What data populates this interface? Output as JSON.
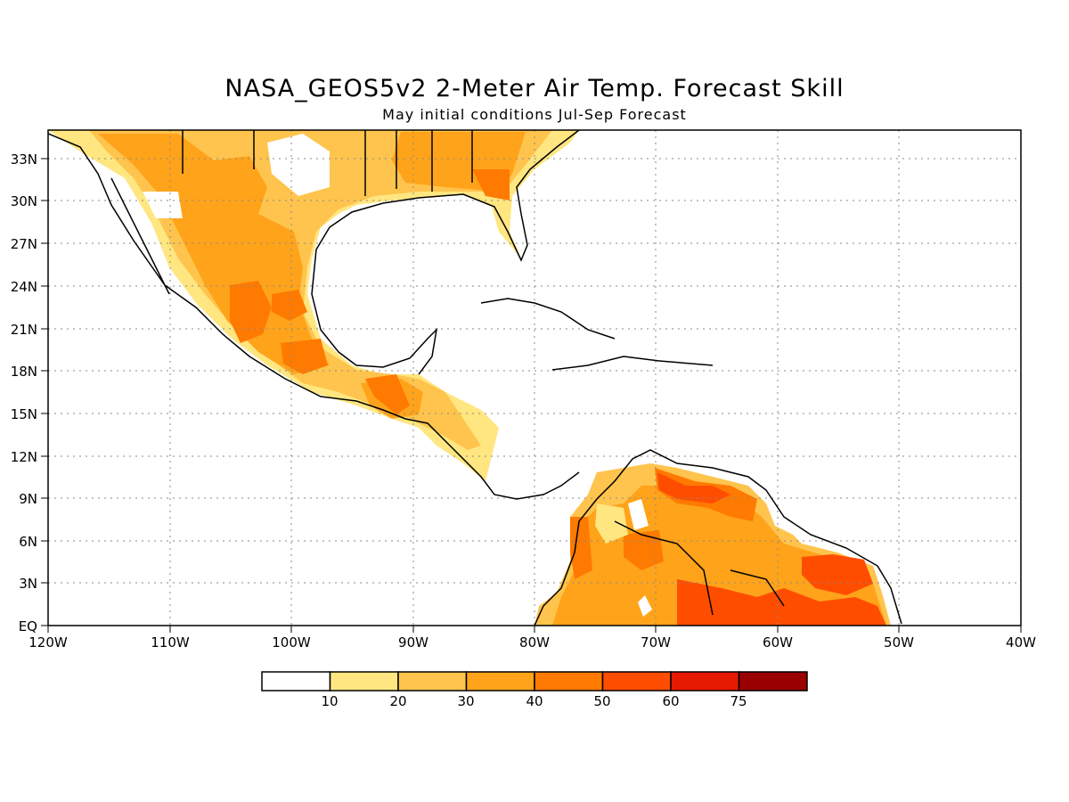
{
  "header": {
    "title": "NASA_GEOS5v2 2-Meter Air Temp. Forecast Skill",
    "subtitle": "May initial conditions  Jul-Sep Forecast"
  },
  "axes": {
    "lat_labels": [
      "33N",
      "30N",
      "27N",
      "24N",
      "21N",
      "18N",
      "15N",
      "12N",
      "9N",
      "6N",
      "3N",
      "EQ"
    ],
    "lon_labels": [
      "120W",
      "110W",
      "100W",
      "90W",
      "80W",
      "70W",
      "60W",
      "50W",
      "40W"
    ]
  },
  "colorbar": {
    "labels": [
      "10",
      "20",
      "30",
      "40",
      "50",
      "60",
      "75"
    ],
    "colors": [
      "#ffffff",
      "#ffe680",
      "#ffc44d",
      "#ffa31a",
      "#ff7a00",
      "#ff4d00",
      "#e61a00",
      "#990000"
    ]
  }
}
